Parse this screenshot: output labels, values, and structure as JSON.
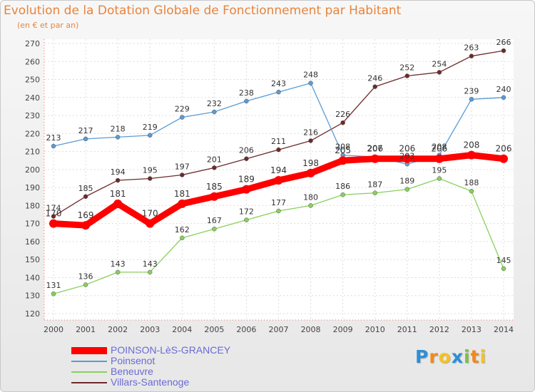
{
  "header": {
    "title": "Evolution de la Dotation Globale de Fonctionnement par Habitant",
    "subtitle": "(en € et par an)"
  },
  "logo_text": "Proxiti",
  "chart_data": {
    "type": "line",
    "title": "Evolution de la Dotation Globale de Fonctionnement par Habitant",
    "subtitle": "(en € et par an)",
    "xlabel": "",
    "ylabel": "",
    "x": [
      "2000",
      "2001",
      "2002",
      "2003",
      "2004",
      "2005",
      "2006",
      "2007",
      "2008",
      "2009",
      "2010",
      "2011",
      "2012",
      "2013",
      "2014"
    ],
    "ylim": [
      120,
      270
    ],
    "yticks": [
      120,
      130,
      140,
      150,
      160,
      170,
      180,
      190,
      200,
      210,
      220,
      230,
      240,
      250,
      260,
      270
    ],
    "grid": true,
    "legend_position": "bottom-left",
    "series": [
      {
        "name": "POINSON-LèS-GRANCEY",
        "color": "#ff0000",
        "values": [
          170,
          169,
          181,
          170,
          181,
          185,
          189,
          194,
          198,
          205,
          206,
          206,
          206,
          208,
          206
        ]
      },
      {
        "name": "Poinsenot",
        "color": "#5b9bd5",
        "values": [
          213,
          217,
          218,
          219,
          229,
          232,
          238,
          243,
          248,
          208,
          207,
          203,
          208,
          239,
          240
        ]
      },
      {
        "name": "Beneuvre",
        "color": "#88d05a",
        "values": [
          131,
          136,
          143,
          143,
          162,
          167,
          172,
          177,
          180,
          186,
          187,
          189,
          195,
          188,
          145
        ]
      },
      {
        "name": "Villars-Santenoge",
        "color": "#6e2a2a",
        "values": [
          174,
          185,
          194,
          195,
          197,
          201,
          206,
          211,
          216,
          226,
          246,
          252,
          254,
          263,
          266
        ]
      }
    ]
  }
}
